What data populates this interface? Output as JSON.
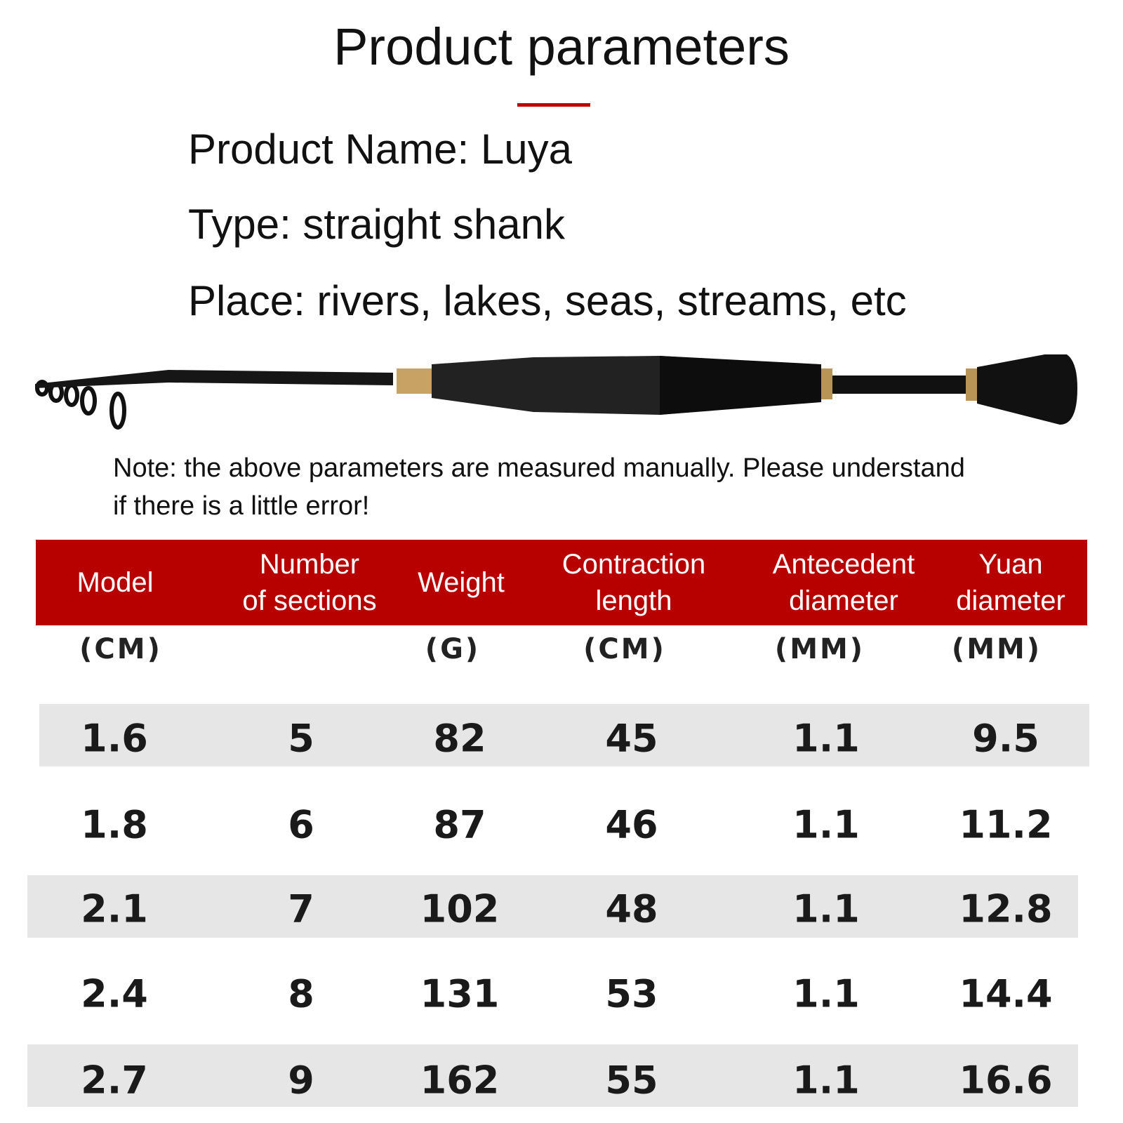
{
  "title": "Product parameters",
  "accent_color": "#b70000",
  "info": {
    "product_name": "Product Name: Luya",
    "type": "Type: straight shank",
    "place": "Place: rivers, lakes, seas, streams, etc"
  },
  "note": {
    "line1": "Note: the above parameters are measured manually. Please understand",
    "line2": "if there is a little error!"
  },
  "table": {
    "headers": [
      {
        "l1": "Model",
        "l2": "",
        "unit": "(CM)"
      },
      {
        "l1": "Number",
        "l2": "of sections",
        "unit": ""
      },
      {
        "l1": "Weight",
        "l2": "",
        "unit": "(G)"
      },
      {
        "l1": "Contraction",
        "l2": "length",
        "unit": "(CM)"
      },
      {
        "l1": "Antecedent",
        "l2": "diameter",
        "unit": "(MM)"
      },
      {
        "l1": "Yuan",
        "l2": "diameter",
        "unit": "(MM)"
      }
    ],
    "rows": [
      [
        "1.6",
        "5",
        "82",
        "45",
        "1.1",
        "9.5"
      ],
      [
        "1.8",
        "6",
        "87",
        "46",
        "1.1",
        "11.2"
      ],
      [
        "2.1",
        "7",
        "102",
        "48",
        "1.1",
        "12.8"
      ],
      [
        "2.4",
        "8",
        "131",
        "53",
        "1.1",
        "14.4"
      ],
      [
        "2.7",
        "9",
        "162",
        "55",
        "1.1",
        "16.6"
      ]
    ]
  }
}
